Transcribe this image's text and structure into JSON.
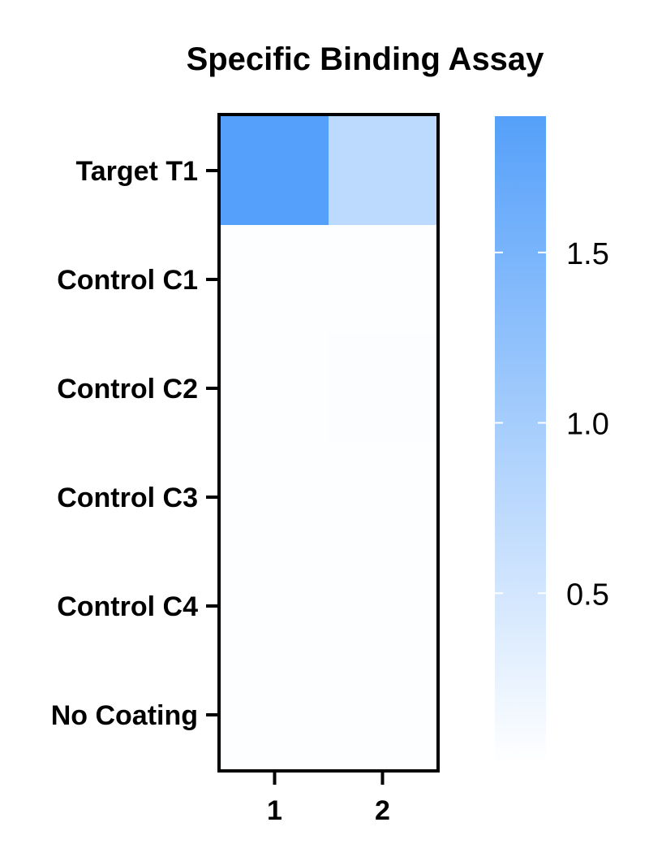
{
  "chart_data": {
    "type": "heatmap",
    "title": "Specific Binding Assay",
    "rows": [
      "Target T1",
      "Control C1",
      "Control C2",
      "Control C3",
      "Control C4",
      "No Coating"
    ],
    "columns": [
      "1",
      "2"
    ],
    "values": [
      [
        1.9,
        0.75
      ],
      [
        0.03,
        0.03
      ],
      [
        0.03,
        0.04
      ],
      [
        0.03,
        0.03
      ],
      [
        0.03,
        0.03
      ],
      [
        0.03,
        0.03
      ]
    ],
    "colorbar": {
      "range": [
        0,
        1.9
      ],
      "ticks": [
        0.5,
        1.0,
        1.5
      ],
      "tick_labels": [
        "0.5",
        "1.0",
        "1.5"
      ],
      "color_low": "#ffffff",
      "color_high": "#55a0fa"
    },
    "grid": false
  }
}
